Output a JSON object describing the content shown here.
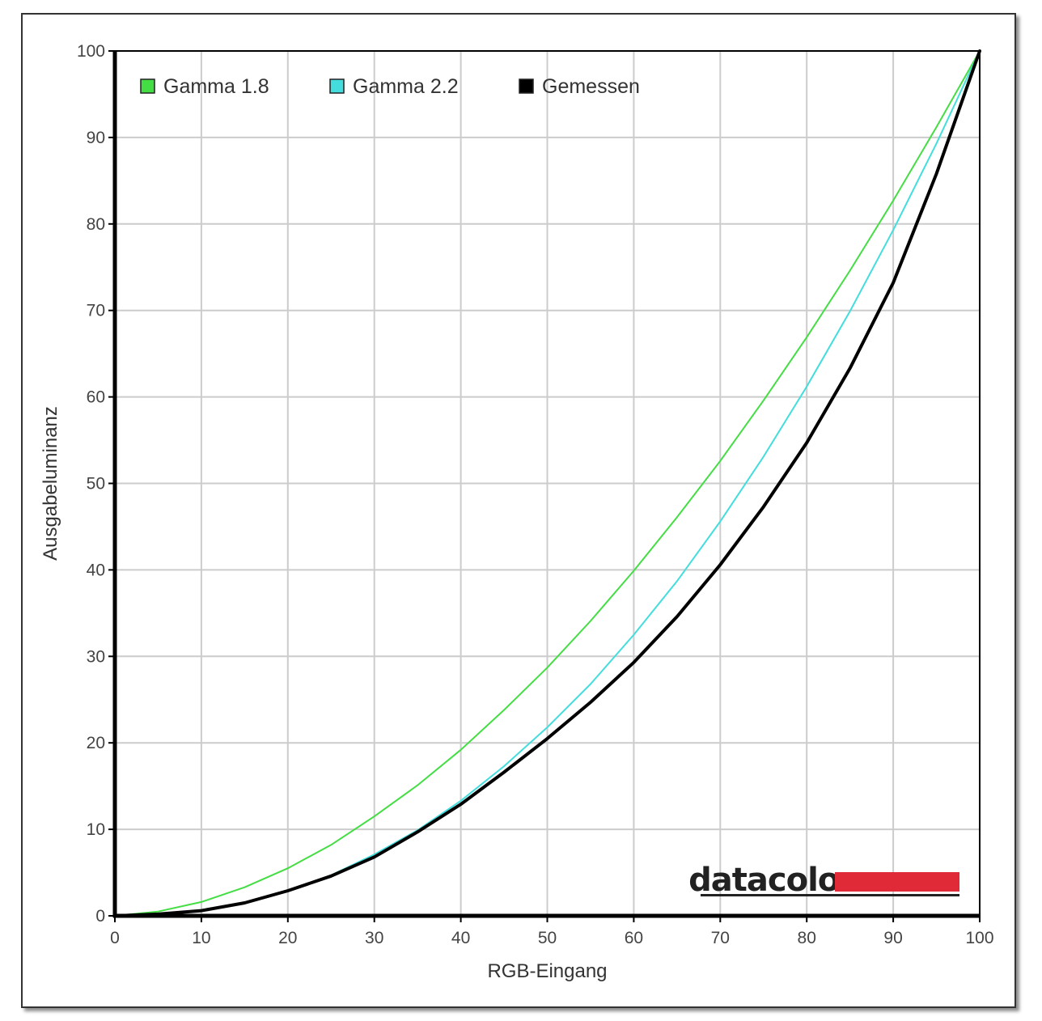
{
  "chart_data": {
    "type": "line",
    "xlabel": "RGB-Eingang",
    "ylabel": "Ausgabeluminanz",
    "xlim": [
      0,
      100
    ],
    "ylim": [
      0,
      100
    ],
    "x_ticks": [
      0,
      10,
      20,
      30,
      40,
      50,
      60,
      70,
      80,
      90,
      100
    ],
    "y_ticks": [
      0,
      10,
      20,
      30,
      40,
      50,
      60,
      70,
      80,
      90,
      100
    ],
    "grid": true,
    "legend_position": "top-left",
    "series": [
      {
        "name": "Gamma 1.8",
        "color": "#44dd44",
        "x": [
          0,
          5,
          10,
          15,
          20,
          25,
          30,
          35,
          40,
          45,
          50,
          55,
          60,
          65,
          70,
          75,
          80,
          85,
          90,
          95,
          100
        ],
        "y": [
          0,
          0.5,
          1.6,
          3.3,
          5.5,
          8.2,
          11.5,
          15.1,
          19.2,
          23.8,
          28.7,
          34.1,
          39.9,
          46.1,
          52.6,
          59.6,
          66.9,
          74.6,
          82.7,
          91.2,
          100
        ]
      },
      {
        "name": "Gamma 2.2",
        "color": "#44dddd",
        "x": [
          0,
          5,
          10,
          15,
          20,
          25,
          30,
          35,
          40,
          45,
          50,
          55,
          60,
          65,
          70,
          75,
          80,
          85,
          90,
          95,
          100
        ],
        "y": [
          0,
          0.1,
          0.6,
          1.5,
          2.9,
          4.7,
          7.1,
          9.9,
          13.3,
          17.3,
          21.8,
          26.8,
          32.5,
          38.7,
          45.6,
          53.1,
          61.2,
          69.9,
          79.3,
          89.3,
          100
        ]
      },
      {
        "name": "Gemessen",
        "color": "#000000",
        "x": [
          0,
          5,
          10,
          15,
          20,
          25,
          30,
          35,
          40,
          45,
          50,
          55,
          60,
          65,
          70,
          75,
          80,
          85,
          90,
          95,
          100
        ],
        "y": [
          0,
          0.2,
          0.6,
          1.5,
          2.9,
          4.6,
          6.8,
          9.7,
          12.9,
          16.6,
          20.5,
          24.7,
          29.3,
          34.6,
          40.6,
          47.3,
          54.7,
          63.3,
          73.2,
          85.8,
          100
        ]
      }
    ]
  },
  "logo": {
    "text": "datacolor",
    "accent_color": "#e02a37"
  }
}
